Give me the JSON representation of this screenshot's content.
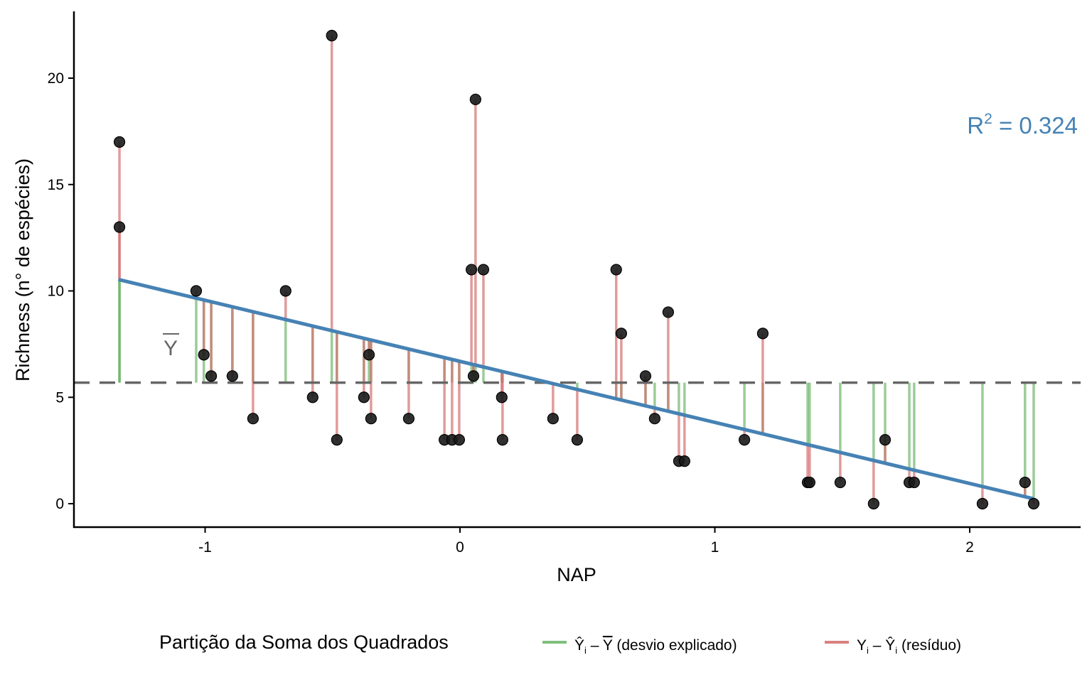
{
  "chart_data": {
    "type": "scatter",
    "title": "",
    "xlabel": "NAP",
    "ylabel": "Richness (n° de espécies)",
    "xlim": [
      -1.55,
      2.4
    ],
    "ylim": [
      -1.1,
      23.1
    ],
    "x_ticks": [
      -1,
      0,
      1,
      2
    ],
    "x_tick_labels": [
      "-1",
      "0",
      "1",
      "2"
    ],
    "y_ticks": [
      0,
      5,
      10,
      15,
      20
    ],
    "y_tick_labels": [
      "0",
      "5",
      "10",
      "15",
      "20"
    ],
    "grid": false,
    "mean_y": 5.69,
    "mean_label": "Y",
    "regression": {
      "intercept": 6.69,
      "slope": -2.87,
      "x_range": [
        -1.34,
        2.25
      ],
      "color": "#4682B4"
    },
    "annotation": {
      "base": "R",
      "sup": "2",
      "text": " = 0.324",
      "color": "#4682B4",
      "position": "top-right"
    },
    "points": [
      {
        "x": -1.336,
        "y": 17
      },
      {
        "x": -1.336,
        "y": 13
      },
      {
        "x": -1.035,
        "y": 10
      },
      {
        "x": -1.005,
        "y": 7
      },
      {
        "x": -0.976,
        "y": 6
      },
      {
        "x": -0.893,
        "y": 6
      },
      {
        "x": -0.812,
        "y": 4
      },
      {
        "x": -0.684,
        "y": 10
      },
      {
        "x": -0.578,
        "y": 5
      },
      {
        "x": -0.483,
        "y": 3
      },
      {
        "x": -0.503,
        "y": 22
      },
      {
        "x": -0.377,
        "y": 5
      },
      {
        "x": -0.357,
        "y": 7
      },
      {
        "x": -0.349,
        "y": 4
      },
      {
        "x": -0.201,
        "y": 4
      },
      {
        "x": -0.061,
        "y": 3
      },
      {
        "x": -0.031,
        "y": 3
      },
      {
        "x": -0.003,
        "y": 3
      },
      {
        "x": 0.045,
        "y": 11
      },
      {
        "x": 0.053,
        "y": 6
      },
      {
        "x": 0.061,
        "y": 19
      },
      {
        "x": 0.092,
        "y": 11
      },
      {
        "x": 0.164,
        "y": 5
      },
      {
        "x": 0.167,
        "y": 3
      },
      {
        "x": 0.365,
        "y": 4
      },
      {
        "x": 0.46,
        "y": 3
      },
      {
        "x": 0.613,
        "y": 11
      },
      {
        "x": 0.633,
        "y": 8
      },
      {
        "x": 0.728,
        "y": 6
      },
      {
        "x": 0.764,
        "y": 4
      },
      {
        "x": 0.817,
        "y": 9
      },
      {
        "x": 0.859,
        "y": 2
      },
      {
        "x": 0.881,
        "y": 2
      },
      {
        "x": 1.116,
        "y": 3
      },
      {
        "x": 1.188,
        "y": 8
      },
      {
        "x": 1.364,
        "y": 1
      },
      {
        "x": 1.372,
        "y": 1
      },
      {
        "x": 1.492,
        "y": 1
      },
      {
        "x": 1.623,
        "y": 0
      },
      {
        "x": 1.668,
        "y": 3
      },
      {
        "x": 1.763,
        "y": 1
      },
      {
        "x": 1.782,
        "y": 1
      },
      {
        "x": 2.05,
        "y": 0
      },
      {
        "x": 2.217,
        "y": 1
      },
      {
        "x": 2.251,
        "y": 0
      }
    ],
    "legend": {
      "title": "Partição da Soma dos Quadrados",
      "placement": "bottom",
      "entries": [
        {
          "label_pre": "Ŷ",
          "label_sub": "i",
          "label_mid": " – ",
          "label_post": "Y",
          "label_desc": " (desvio explicado)",
          "color": "#7fbf7b"
        },
        {
          "label_pre": "Y",
          "label_sub": "i",
          "label_mid": " – ",
          "label_post": "Ŷ",
          "label_post_sub": "i",
          "label_desc": " (resíduo)",
          "color": "#d98080"
        }
      ]
    },
    "colors": {
      "explained": "#5aaa55",
      "residual": "#d47070",
      "point": "#1a1a1a",
      "mean_line": "#666666"
    }
  }
}
